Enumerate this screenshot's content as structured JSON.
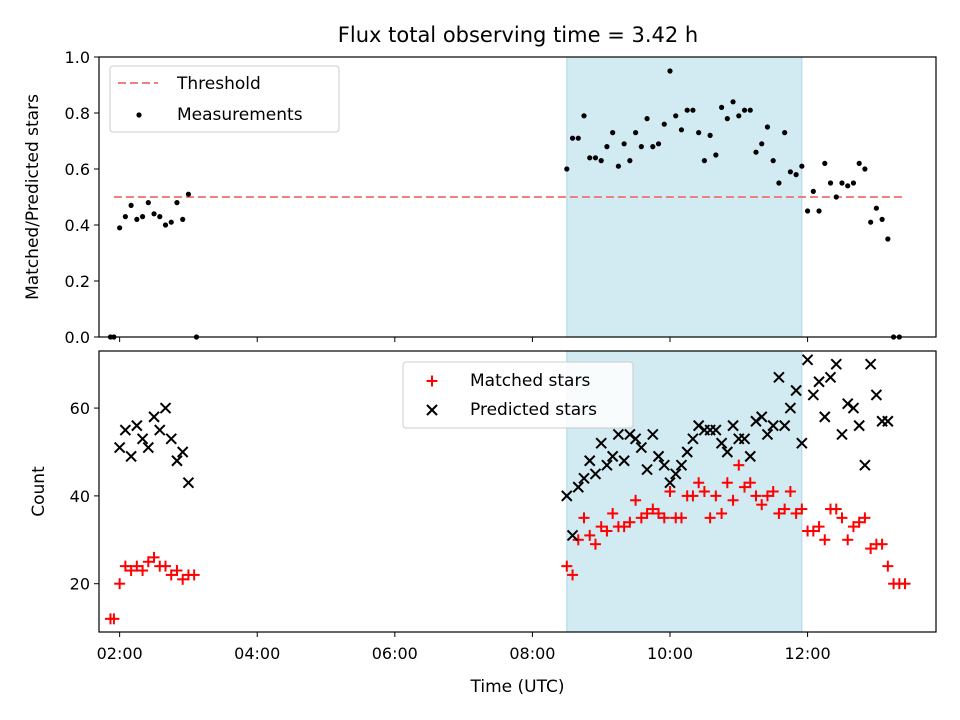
{
  "chart_data": [
    {
      "type": "scatter",
      "title": "Flux total observing time = 3.42 h",
      "xlabel": "",
      "ylabel": "Matched/Predicted stars",
      "xlim": [
        "01:42",
        "13:52"
      ],
      "ylim": [
        0.0,
        1.0
      ],
      "yticks": [
        "0.0",
        "0.2",
        "0.4",
        "0.6",
        "0.8",
        "1.0"
      ],
      "shaded_interval": [
        "08:30",
        "11:55"
      ],
      "shade_color": "#add8e6",
      "legend_position": "upper-left",
      "series": [
        {
          "name": "Threshold",
          "kind": "dashed-line",
          "color": "#f08080",
          "segments": [
            {
              "x": [
                "01:55",
                "13:25"
              ],
              "y": 0.5
            }
          ]
        },
        {
          "name": "Measurements",
          "kind": "dots",
          "color": "#000000",
          "points": [
            [
              "01:52",
              0.0
            ],
            [
              "01:55",
              0.0
            ],
            [
              "02:00",
              0.39
            ],
            [
              "02:05",
              0.43
            ],
            [
              "02:10",
              0.47
            ],
            [
              "02:15",
              0.42
            ],
            [
              "02:20",
              0.43
            ],
            [
              "02:25",
              0.48
            ],
            [
              "02:30",
              0.44
            ],
            [
              "02:35",
              0.43
            ],
            [
              "02:40",
              0.4
            ],
            [
              "02:45",
              0.41
            ],
            [
              "02:50",
              0.48
            ],
            [
              "02:55",
              0.42
            ],
            [
              "03:00",
              0.51
            ],
            [
              "03:07",
              0.0
            ],
            [
              "08:30",
              0.6
            ],
            [
              "08:35",
              0.71
            ],
            [
              "08:40",
              0.71
            ],
            [
              "08:45",
              0.79
            ],
            [
              "08:50",
              0.64
            ],
            [
              "08:55",
              0.64
            ],
            [
              "09:00",
              0.63
            ],
            [
              "09:05",
              0.68
            ],
            [
              "09:10",
              0.73
            ],
            [
              "09:15",
              0.61
            ],
            [
              "09:20",
              0.69
            ],
            [
              "09:25",
              0.63
            ],
            [
              "09:30",
              0.73
            ],
            [
              "09:35",
              0.68
            ],
            [
              "09:40",
              0.78
            ],
            [
              "09:45",
              0.68
            ],
            [
              "09:50",
              0.69
            ],
            [
              "09:55",
              0.76
            ],
            [
              "10:00",
              0.95
            ],
            [
              "10:05",
              0.79
            ],
            [
              "10:10",
              0.74
            ],
            [
              "10:15",
              0.81
            ],
            [
              "10:20",
              0.81
            ],
            [
              "10:25",
              0.73
            ],
            [
              "10:30",
              0.63
            ],
            [
              "10:35",
              0.72
            ],
            [
              "10:40",
              0.65
            ],
            [
              "10:45",
              0.82
            ],
            [
              "10:50",
              0.78
            ],
            [
              "10:55",
              0.84
            ],
            [
              "11:00",
              0.79
            ],
            [
              "11:05",
              0.81
            ],
            [
              "11:10",
              0.81
            ],
            [
              "11:15",
              0.66
            ],
            [
              "11:20",
              0.69
            ],
            [
              "11:25",
              0.75
            ],
            [
              "11:30",
              0.63
            ],
            [
              "11:35",
              0.55
            ],
            [
              "11:40",
              0.73
            ],
            [
              "11:45",
              0.59
            ],
            [
              "11:50",
              0.58
            ],
            [
              "11:55",
              0.61
            ],
            [
              "12:00",
              0.45
            ],
            [
              "12:05",
              0.52
            ],
            [
              "12:10",
              0.45
            ],
            [
              "12:15",
              0.62
            ],
            [
              "12:20",
              0.55
            ],
            [
              "12:25",
              0.5
            ],
            [
              "12:30",
              0.55
            ],
            [
              "12:35",
              0.54
            ],
            [
              "12:40",
              0.55
            ],
            [
              "12:45",
              0.62
            ],
            [
              "12:50",
              0.6
            ],
            [
              "12:55",
              0.41
            ],
            [
              "13:00",
              0.46
            ],
            [
              "13:05",
              0.42
            ],
            [
              "13:10",
              0.35
            ],
            [
              "13:15",
              0.0
            ],
            [
              "13:20",
              0.0
            ]
          ]
        }
      ]
    },
    {
      "type": "scatter",
      "title": "",
      "xlabel": "Time (UTC)",
      "ylabel": "Count",
      "xlim": [
        "01:42",
        "13:52"
      ],
      "ylim": [
        9,
        73
      ],
      "yticks": [
        "20",
        "40",
        "60"
      ],
      "xticks": [
        "02:00",
        "04:00",
        "06:00",
        "08:00",
        "10:00",
        "12:00"
      ],
      "shaded_interval": [
        "08:30",
        "11:55"
      ],
      "shade_color": "#add8e6",
      "legend_position": "top-center",
      "series": [
        {
          "name": "Matched stars",
          "kind": "plus",
          "color": "#ff0000",
          "points": [
            [
              "01:52",
              12
            ],
            [
              "01:55",
              12
            ],
            [
              "02:00",
              20
            ],
            [
              "02:05",
              24
            ],
            [
              "02:10",
              23
            ],
            [
              "02:15",
              24
            ],
            [
              "02:20",
              23
            ],
            [
              "02:25",
              25
            ],
            [
              "02:30",
              26
            ],
            [
              "02:35",
              24
            ],
            [
              "02:40",
              24
            ],
            [
              "02:45",
              22
            ],
            [
              "02:50",
              23
            ],
            [
              "02:55",
              21
            ],
            [
              "03:00",
              22
            ],
            [
              "03:05",
              22
            ],
            [
              "08:30",
              24
            ],
            [
              "08:35",
              22
            ],
            [
              "08:40",
              30
            ],
            [
              "08:45",
              35
            ],
            [
              "08:50",
              31
            ],
            [
              "08:55",
              29
            ],
            [
              "09:00",
              33
            ],
            [
              "09:05",
              32
            ],
            [
              "09:10",
              36
            ],
            [
              "09:15",
              33
            ],
            [
              "09:20",
              33
            ],
            [
              "09:25",
              34
            ],
            [
              "09:30",
              39
            ],
            [
              "09:35",
              35
            ],
            [
              "09:40",
              36
            ],
            [
              "09:45",
              37
            ],
            [
              "09:50",
              36
            ],
            [
              "09:55",
              35
            ],
            [
              "10:00",
              41
            ],
            [
              "10:05",
              35
            ],
            [
              "10:10",
              35
            ],
            [
              "10:15",
              40
            ],
            [
              "10:20",
              40
            ],
            [
              "10:25",
              43
            ],
            [
              "10:30",
              41
            ],
            [
              "10:35",
              35
            ],
            [
              "10:40",
              40
            ],
            [
              "10:45",
              36
            ],
            [
              "10:50",
              43
            ],
            [
              "10:55",
              39
            ],
            [
              "11:00",
              47
            ],
            [
              "11:05",
              42
            ],
            [
              "11:10",
              43
            ],
            [
              "11:15",
              40
            ],
            [
              "11:20",
              38
            ],
            [
              "11:25",
              40
            ],
            [
              "11:30",
              41
            ],
            [
              "11:35",
              36
            ],
            [
              "11:40",
              37
            ],
            [
              "11:45",
              41
            ],
            [
              "11:50",
              36
            ],
            [
              "11:55",
              37
            ],
            [
              "12:00",
              32
            ],
            [
              "12:05",
              32
            ],
            [
              "12:10",
              33
            ],
            [
              "12:15",
              30
            ],
            [
              "12:20",
              37
            ],
            [
              "12:25",
              37
            ],
            [
              "12:30",
              35
            ],
            [
              "12:35",
              30
            ],
            [
              "12:40",
              33
            ],
            [
              "12:45",
              34
            ],
            [
              "12:50",
              35
            ],
            [
              "12:55",
              28
            ],
            [
              "13:00",
              29
            ],
            [
              "13:05",
              29
            ],
            [
              "13:10",
              24
            ],
            [
              "13:15",
              20
            ],
            [
              "13:20",
              20
            ],
            [
              "13:25",
              20
            ]
          ]
        },
        {
          "name": "Predicted stars",
          "kind": "cross",
          "color": "#000000",
          "points": [
            [
              "02:00",
              51
            ],
            [
              "02:05",
              55
            ],
            [
              "02:10",
              49
            ],
            [
              "02:15",
              56
            ],
            [
              "02:20",
              53
            ],
            [
              "02:25",
              51
            ],
            [
              "02:30",
              58
            ],
            [
              "02:35",
              55
            ],
            [
              "02:40",
              60
            ],
            [
              "02:45",
              53
            ],
            [
              "02:50",
              48
            ],
            [
              "02:55",
              50
            ],
            [
              "03:00",
              43
            ],
            [
              "08:30",
              40
            ],
            [
              "08:35",
              31
            ],
            [
              "08:40",
              42
            ],
            [
              "08:45",
              44
            ],
            [
              "08:50",
              48
            ],
            [
              "08:55",
              45
            ],
            [
              "09:00",
              52
            ],
            [
              "09:05",
              47
            ],
            [
              "09:10",
              49
            ],
            [
              "09:15",
              54
            ],
            [
              "09:20",
              48
            ],
            [
              "09:25",
              54
            ],
            [
              "09:30",
              53
            ],
            [
              "09:35",
              51
            ],
            [
              "09:40",
              46
            ],
            [
              "09:45",
              54
            ],
            [
              "09:50",
              49
            ],
            [
              "09:55",
              47
            ],
            [
              "10:00",
              43
            ],
            [
              "10:05",
              45
            ],
            [
              "10:10",
              47
            ],
            [
              "10:15",
              50
            ],
            [
              "10:20",
              53
            ],
            [
              "10:25",
              56
            ],
            [
              "10:30",
              55
            ],
            [
              "10:35",
              55
            ],
            [
              "10:40",
              55
            ],
            [
              "10:45",
              52
            ],
            [
              "10:50",
              50
            ],
            [
              "10:55",
              56
            ],
            [
              "11:00",
              53
            ],
            [
              "11:05",
              53
            ],
            [
              "11:10",
              49
            ],
            [
              "11:15",
              57
            ],
            [
              "11:20",
              58
            ],
            [
              "11:25",
              54
            ],
            [
              "11:30",
              56
            ],
            [
              "11:35",
              67
            ],
            [
              "11:40",
              56
            ],
            [
              "11:45",
              60
            ],
            [
              "11:50",
              64
            ],
            [
              "11:55",
              52
            ],
            [
              "12:00",
              71
            ],
            [
              "12:05",
              63
            ],
            [
              "12:10",
              66
            ],
            [
              "12:15",
              58
            ],
            [
              "12:20",
              67
            ],
            [
              "12:25",
              70
            ],
            [
              "12:30",
              54
            ],
            [
              "12:35",
              61
            ],
            [
              "12:40",
              60
            ],
            [
              "12:45",
              56
            ],
            [
              "12:50",
              47
            ],
            [
              "12:55",
              70
            ],
            [
              "13:00",
              63
            ],
            [
              "13:05",
              57
            ],
            [
              "13:10",
              57
            ]
          ]
        }
      ]
    }
  ]
}
